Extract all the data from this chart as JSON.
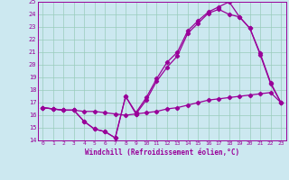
{
  "xlabel": "Windchill (Refroidissement éolien,°C)",
  "bg_color": "#cce8f0",
  "line_color": "#990099",
  "grid_color": "#99ccbb",
  "xlim": [
    -0.5,
    23.5
  ],
  "ylim": [
    14,
    25
  ],
  "xticks": [
    0,
    1,
    2,
    3,
    4,
    5,
    6,
    7,
    8,
    9,
    10,
    11,
    12,
    13,
    14,
    15,
    16,
    17,
    18,
    19,
    20,
    21,
    22,
    23
  ],
  "yticks": [
    14,
    15,
    16,
    17,
    18,
    19,
    20,
    21,
    22,
    23,
    24,
    25
  ],
  "line1_x": [
    0,
    1,
    2,
    3,
    4,
    5,
    6,
    7,
    8,
    9,
    10,
    11,
    12,
    13,
    14,
    15,
    16,
    17,
    18,
    19,
    20,
    21,
    22,
    23
  ],
  "line1_y": [
    16.6,
    16.5,
    16.4,
    16.4,
    16.3,
    16.3,
    16.2,
    16.1,
    16.0,
    16.1,
    16.2,
    16.3,
    16.5,
    16.6,
    16.8,
    17.0,
    17.2,
    17.3,
    17.4,
    17.5,
    17.6,
    17.7,
    17.8,
    17.0
  ],
  "line2_x": [
    0,
    1,
    2,
    3,
    4,
    5,
    6,
    7,
    8,
    9,
    10,
    11,
    12,
    13,
    14,
    15,
    16,
    17,
    18,
    19,
    20,
    21,
    22,
    23
  ],
  "line2_y": [
    16.6,
    16.5,
    16.4,
    16.4,
    15.5,
    14.9,
    14.7,
    14.2,
    17.5,
    16.1,
    17.2,
    18.7,
    19.8,
    20.7,
    22.5,
    23.3,
    24.1,
    24.4,
    24.0,
    23.8,
    22.9,
    20.8,
    18.5,
    17.0
  ],
  "line3_x": [
    0,
    1,
    2,
    3,
    4,
    5,
    6,
    7,
    8,
    9,
    10,
    11,
    12,
    13,
    14,
    15,
    16,
    17,
    18,
    19,
    20,
    21,
    22,
    23
  ],
  "line3_y": [
    16.6,
    16.5,
    16.4,
    16.4,
    15.5,
    14.9,
    14.7,
    14.2,
    17.5,
    16.2,
    17.4,
    18.9,
    20.2,
    21.0,
    22.7,
    23.5,
    24.2,
    24.6,
    25.0,
    23.8,
    22.9,
    20.9,
    18.6,
    17.0
  ]
}
